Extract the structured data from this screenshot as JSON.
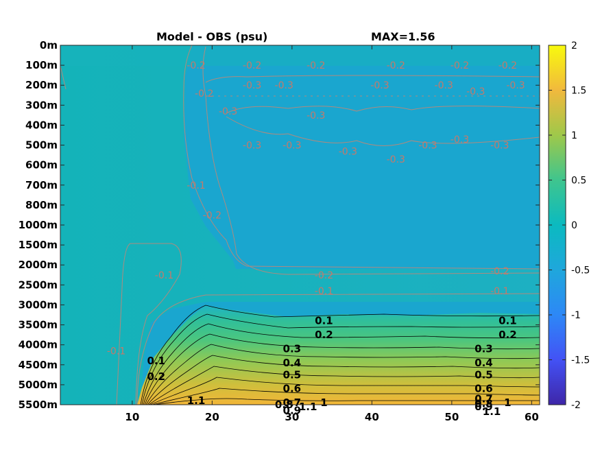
{
  "chart_data": {
    "type": "heatmap",
    "title": "Model - OBS (psu)",
    "max_label": "MAX=1.56",
    "x_ticks": [
      10,
      20,
      30,
      40,
      50,
      60
    ],
    "xlim": [
      1,
      61
    ],
    "y_tick_labels": [
      "0m",
      "100m",
      "200m",
      "300m",
      "400m",
      "500m",
      "600m",
      "700m",
      "800m",
      "1000m",
      "1500m",
      "2000m",
      "2500m",
      "3000m",
      "3500m",
      "4000m",
      "4500m",
      "5000m",
      "5500m"
    ],
    "colorbar": {
      "min": -2,
      "max": 2,
      "ticks": [
        2,
        1.5,
        1,
        0.5,
        0,
        -0.5,
        -1,
        -1.5,
        -2
      ]
    },
    "grey_contour_labels": [
      {
        "text": "-0.2",
        "x": 18,
        "depth_index": 1
      },
      {
        "text": "-0.2",
        "x": 25,
        "depth_index": 1
      },
      {
        "text": "-0.2",
        "x": 33,
        "depth_index": 1
      },
      {
        "text": "-0.2",
        "x": 43,
        "depth_index": 1
      },
      {
        "text": "-0.2",
        "x": 51,
        "depth_index": 1
      },
      {
        "text": "-0.2",
        "x": 57,
        "depth_index": 1
      },
      {
        "text": "-0.2",
        "x": 19,
        "depth_index": 2.4
      },
      {
        "text": "-0.3",
        "x": 25,
        "depth_index": 2
      },
      {
        "text": "-0.3",
        "x": 29,
        "depth_index": 2
      },
      {
        "text": "-0.3",
        "x": 41,
        "depth_index": 2
      },
      {
        "text": "-0.3",
        "x": 49,
        "depth_index": 2
      },
      {
        "text": "-0.3",
        "x": 53,
        "depth_index": 2.3
      },
      {
        "text": "-0.3",
        "x": 58,
        "depth_index": 2
      },
      {
        "text": "-0.3",
        "x": 22,
        "depth_index": 3.3
      },
      {
        "text": "-0.3",
        "x": 33,
        "depth_index": 3.5
      },
      {
        "text": "-0.3",
        "x": 25,
        "depth_index": 5
      },
      {
        "text": "-0.3",
        "x": 30,
        "depth_index": 5
      },
      {
        "text": "-0.3",
        "x": 37,
        "depth_index": 5.3
      },
      {
        "text": "-0.3",
        "x": 43,
        "depth_index": 5.7
      },
      {
        "text": "-0.3",
        "x": 47,
        "depth_index": 5
      },
      {
        "text": "-0.3",
        "x": 51,
        "depth_index": 4.7
      },
      {
        "text": "-0.3",
        "x": 56,
        "depth_index": 5
      },
      {
        "text": "-0.1",
        "x": 18,
        "depth_index": 7
      },
      {
        "text": "-0.2",
        "x": 20,
        "depth_index": 8.5
      },
      {
        "text": "-0.1",
        "x": 14,
        "depth_index": 11.5
      },
      {
        "text": "-0.2",
        "x": 34,
        "depth_index": 11.5
      },
      {
        "text": "-0.1",
        "x": 34,
        "depth_index": 12.3
      },
      {
        "text": "-0.2",
        "x": 56,
        "depth_index": 11.3
      },
      {
        "text": "-0.1",
        "x": 56,
        "depth_index": 12.3
      },
      {
        "text": "-0.1",
        "x": 8,
        "depth_index": 15.3
      }
    ],
    "black_contour_labels": [
      {
        "text": "0.1",
        "x": 13,
        "depth_index": 15.8
      },
      {
        "text": "0.2",
        "x": 13,
        "depth_index": 16.6
      },
      {
        "text": "0.1",
        "x": 34,
        "depth_index": 13.8
      },
      {
        "text": "0.2",
        "x": 34,
        "depth_index": 14.5
      },
      {
        "text": "0.3",
        "x": 30,
        "depth_index": 15.2
      },
      {
        "text": "0.4",
        "x": 30,
        "depth_index": 15.9
      },
      {
        "text": "0.5",
        "x": 30,
        "depth_index": 16.5
      },
      {
        "text": "0.6",
        "x": 30,
        "depth_index": 17.2
      },
      {
        "text": "0.7",
        "x": 30,
        "depth_index": 17.9
      },
      {
        "text": "0.8",
        "x": 29,
        "depth_index": 18
      },
      {
        "text": "0.9",
        "x": 30,
        "depth_index": 18.3
      },
      {
        "text": "1",
        "x": 34,
        "depth_index": 17.9
      },
      {
        "text": "1.1",
        "x": 18,
        "depth_index": 17.8
      },
      {
        "text": "1.1",
        "x": 32,
        "depth_index": 18.1
      },
      {
        "text": "0.1",
        "x": 57,
        "depth_index": 13.8
      },
      {
        "text": "0.2",
        "x": 57,
        "depth_index": 14.5
      },
      {
        "text": "0.3",
        "x": 54,
        "depth_index": 15.2
      },
      {
        "text": "0.4",
        "x": 54,
        "depth_index": 15.9
      },
      {
        "text": "0.5",
        "x": 54,
        "depth_index": 16.5
      },
      {
        "text": "0.6",
        "x": 54,
        "depth_index": 17.2
      },
      {
        "text": "0.7",
        "x": 54,
        "depth_index": 17.7
      },
      {
        "text": "0.8",
        "x": 54,
        "depth_index": 17.95
      },
      {
        "text": "0.9",
        "x": 54,
        "depth_index": 18.1
      },
      {
        "text": "1",
        "x": 57,
        "depth_index": 17.9
      },
      {
        "text": "1.1",
        "x": 55,
        "depth_index": 18.35
      }
    ],
    "colors": {
      "background_top": "#1aa8ce",
      "background_left": "#18b2bc",
      "deep_warm": "#f2b638",
      "grey_contour": "#c47a6b",
      "black_contour": "#000000"
    }
  }
}
